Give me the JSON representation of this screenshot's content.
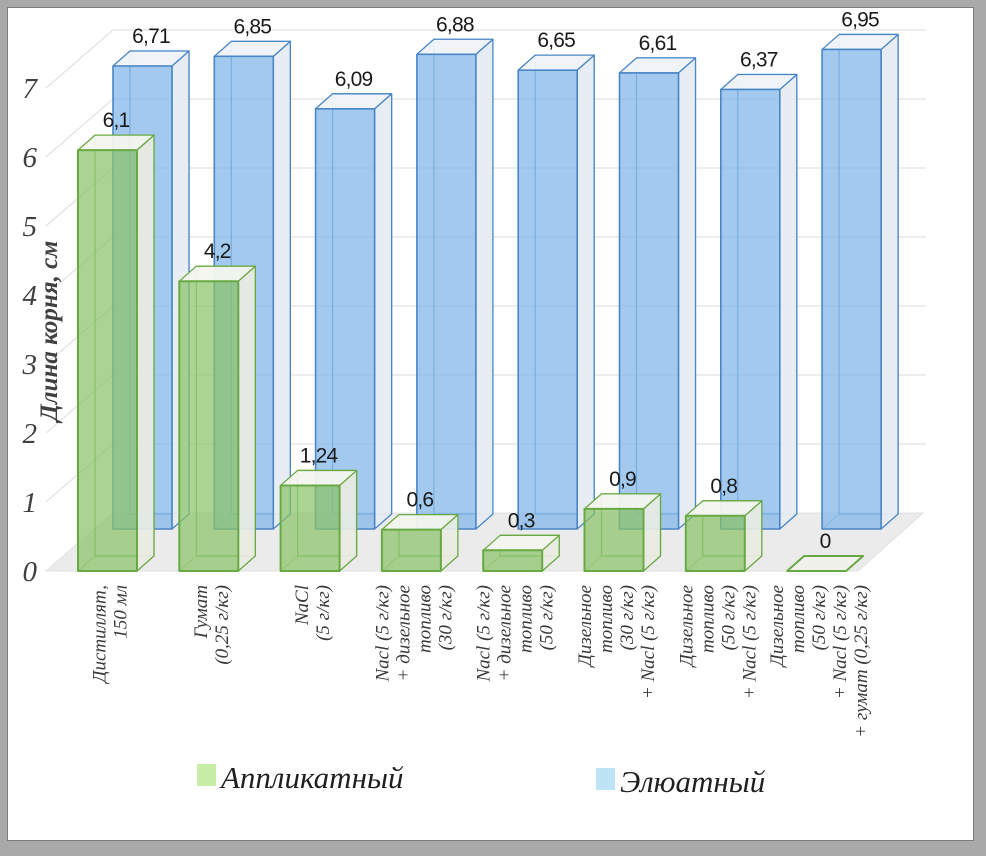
{
  "chart_data": {
    "type": "bar",
    "style": "3d-column-transparent",
    "title": "",
    "xlabel": "",
    "ylabel": "Длина корня, см",
    "ylim": [
      0,
      7
    ],
    "yticks": [
      "0",
      "1",
      "2",
      "3",
      "4",
      "5",
      "6",
      "7"
    ],
    "grid": true,
    "legend_position": "bottom",
    "categories": [
      "Дистиллят,\n150 мл",
      "Гумат\n(0,25 г/кг)",
      "NaCl\n(5 г/кг)",
      "Nacl (5 г/кг)\n+ дизельное\nтопливо\n(30  г/кг)",
      "Nacl (5 г/кг)\n+ дизельное\nтопливо\n(50  г/кг)",
      "Дизельное\nтопливо\n(30  г/кг)\n+ Nacl (5 г/кг)",
      "Дизельное\nтопливо\n(50  г/кг)\n+ Nacl (5 г/кг)",
      "Дизельное\nтопливо\n(50 г/кг)\n+ Nacl (5 г/кг)\n+ гумат (0,25 г/кг)"
    ],
    "series": [
      {
        "name": "Аппликатный",
        "values": [
          6.1,
          4.2,
          1.24,
          0.6,
          0.3,
          0.9,
          0.8,
          0
        ],
        "value_labels": [
          "6,1",
          "4,2",
          "1,24",
          "0,6",
          "0,3",
          "0,9",
          "0,8",
          "0"
        ],
        "fill": "#8BC468",
        "edge": "#69A944",
        "top_face": "#F3F6EE",
        "side_face": "#E9ECE3",
        "legend_swatch": "#C8EDA6"
      },
      {
        "name": "Элюатный",
        "values": [
          6.71,
          6.85,
          6.09,
          6.88,
          6.65,
          6.61,
          6.37,
          6.95
        ],
        "value_labels": [
          "6,71",
          "6,85",
          "6,09",
          "6,88",
          "6,65",
          "6,61",
          "6,37",
          "6,95"
        ],
        "fill": "#7FB5E8",
        "edge": "#4A86C6",
        "top_face": "#EFF3F9",
        "side_face": "#E6EBF2",
        "legend_swatch": "#BCE4F5"
      }
    ],
    "colors": {
      "floor": "#EBEBEB",
      "gridline": "#E2E2E2",
      "tick_text": "#404040",
      "value_text": "#1a1a1a",
      "category_text": "#3a3a3a"
    }
  }
}
